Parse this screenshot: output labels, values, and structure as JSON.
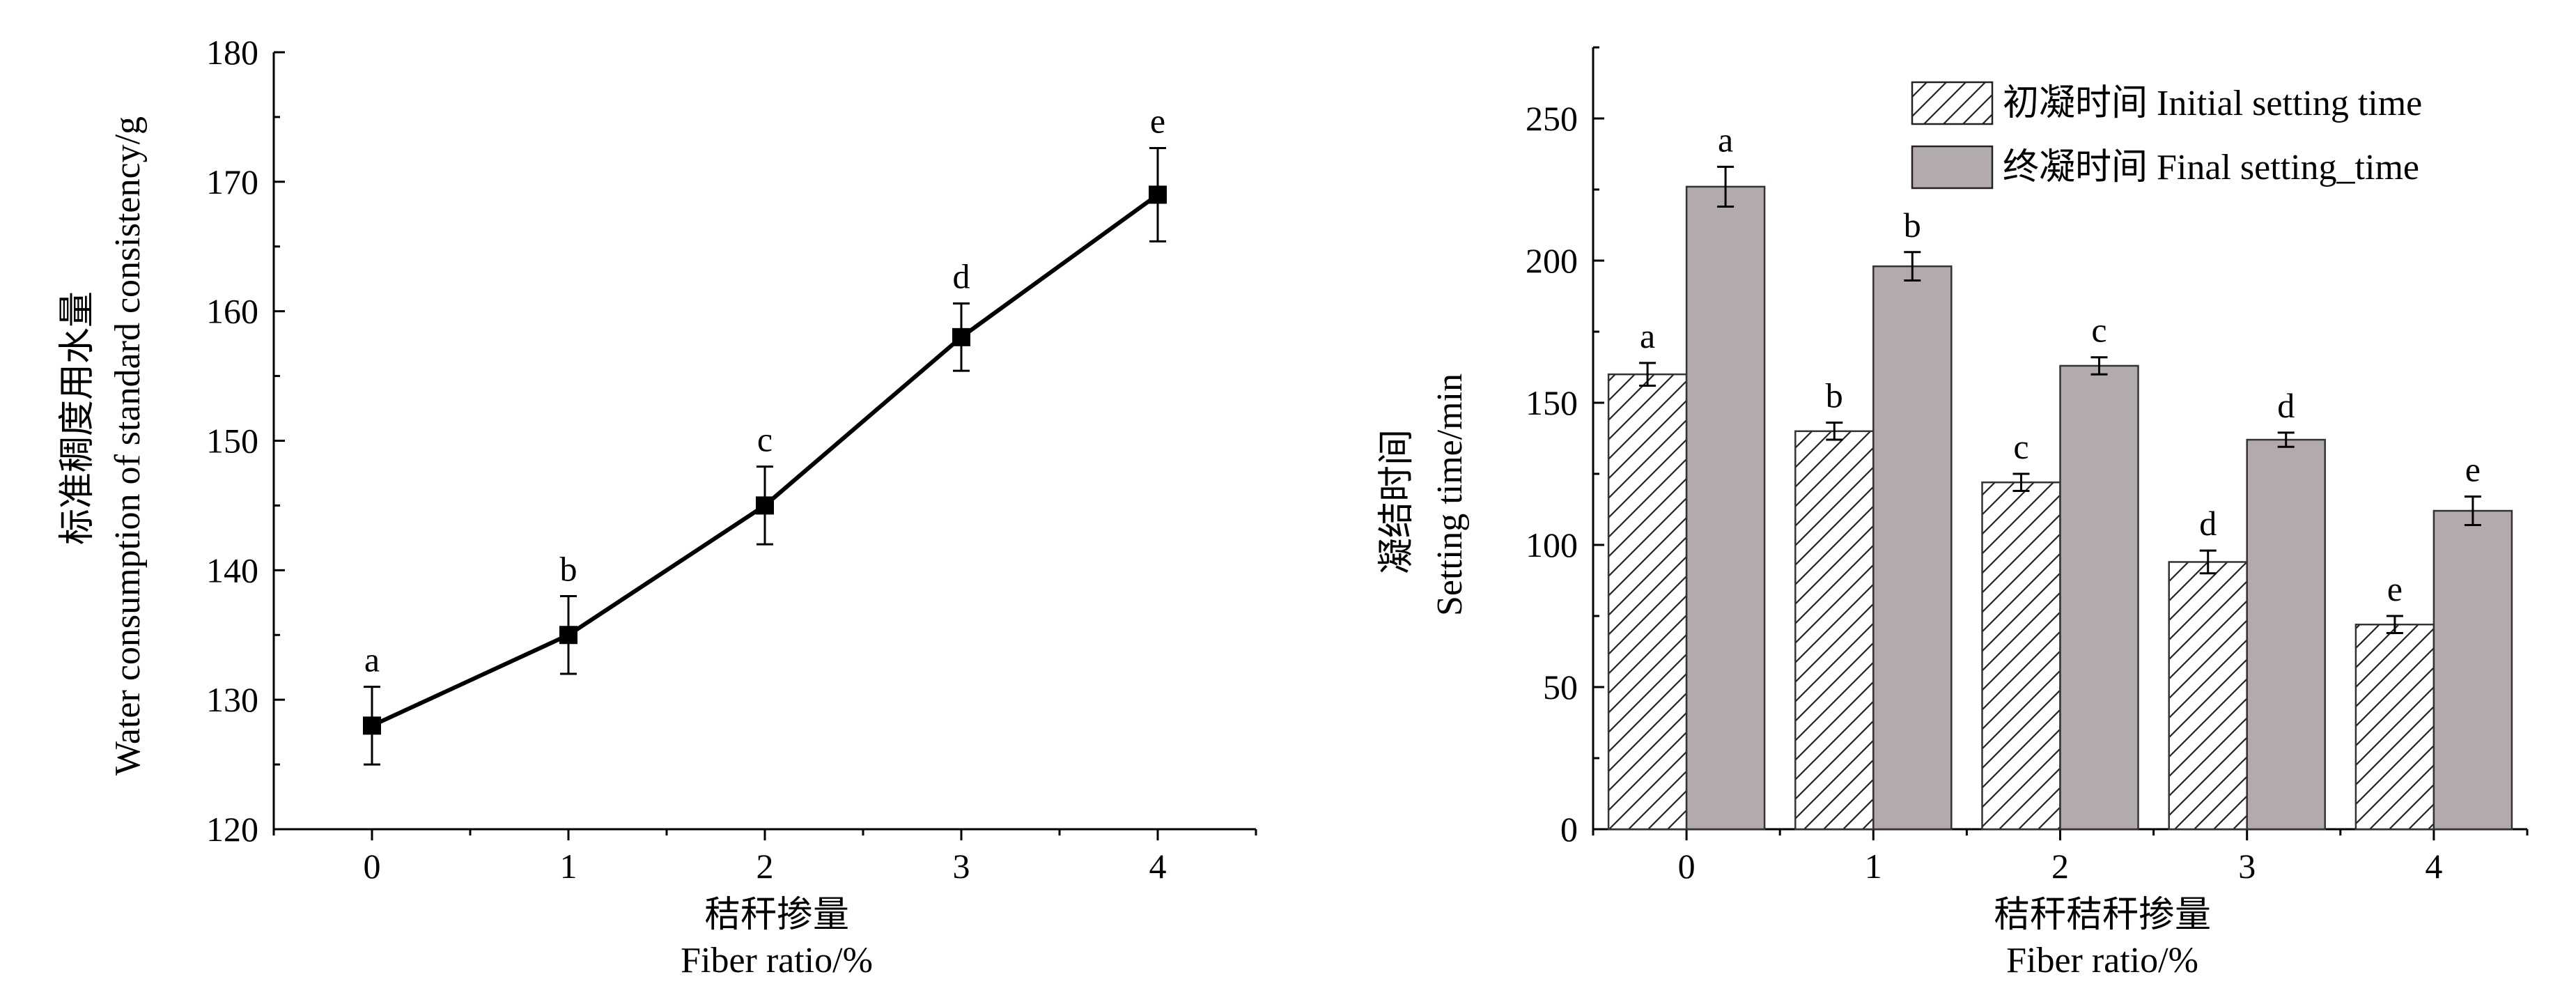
{
  "chart_data": [
    {
      "type": "line",
      "xlabel": "秸秆掺量",
      "xlabel_en": "Fiber ratio/%",
      "ylabel": "标准稠度用水量",
      "ylabel_en": "Water consumption of standard consistency/g",
      "x": [
        0,
        1,
        2,
        3,
        4
      ],
      "x_ticks": [
        "0",
        "1",
        "2",
        "3",
        "4"
      ],
      "ylim": [
        120,
        180
      ],
      "y_ticks": [
        "120",
        "130",
        "140",
        "150",
        "160",
        "170",
        "180"
      ],
      "series": [
        {
          "values": [
            128,
            135,
            145,
            158,
            169
          ],
          "errors": [
            3,
            3,
            3,
            2.6,
            3.6
          ],
          "significance": [
            "a",
            "b",
            "c",
            "d",
            "e"
          ]
        }
      ]
    },
    {
      "type": "bar",
      "xlabel": "秸秆秸秆掺量",
      "xlabel_en": "Fiber ratio/%",
      "ylabel": "凝结时间",
      "ylabel_en": "Setting time/min",
      "categories": [
        "0",
        "1",
        "2",
        "3",
        "4"
      ],
      "ylim": [
        0,
        275
      ],
      "y_ticks": [
        "0",
        "50",
        "100",
        "150",
        "200",
        "250"
      ],
      "legend_position": "top-right",
      "series": [
        {
          "name": "初凝时间 Initial setting time",
          "values": [
            160,
            140,
            122,
            94,
            72
          ],
          "errors": [
            4,
            3,
            3,
            4,
            3
          ],
          "significance": [
            "a",
            "b",
            "c",
            "d",
            "e"
          ],
          "pattern": "hatched"
        },
        {
          "name": "终凝时间 Final setting_time",
          "values": [
            226,
            198,
            163,
            137,
            112
          ],
          "errors": [
            7,
            5,
            3,
            2.5,
            5
          ],
          "significance": [
            "a",
            "b",
            "c",
            "d",
            "e"
          ],
          "color": "#b3abab"
        }
      ]
    }
  ]
}
